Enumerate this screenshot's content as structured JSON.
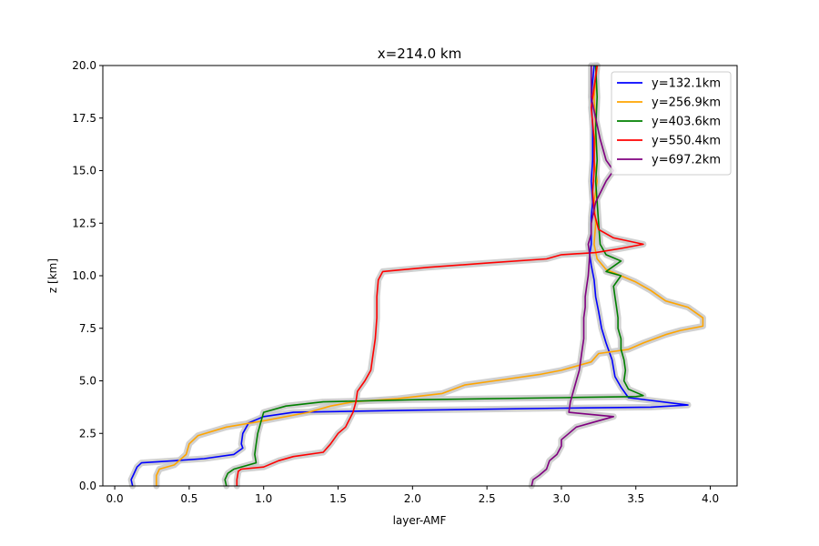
{
  "chart_data": {
    "type": "line",
    "title": "x=214.0 km",
    "xlabel": "layer-AMF",
    "ylabel": "z [km]",
    "xlim": [
      -0.08,
      4.18
    ],
    "ylim": [
      0,
      20
    ],
    "xticks": [
      "0.0",
      "0.5",
      "1.0",
      "1.5",
      "2.0",
      "2.5",
      "3.0",
      "3.5",
      "4.0"
    ],
    "yticks": [
      "0.0",
      "2.5",
      "5.0",
      "7.5",
      "10.0",
      "12.5",
      "15.0",
      "17.5",
      "20.0"
    ],
    "grid": false,
    "legend_position": "upper-right",
    "band_color": "#c8c8c8",
    "series": [
      {
        "name": "y=132.1km",
        "color": "#0000ff",
        "points": [
          [
            0.12,
            0.0
          ],
          [
            0.11,
            0.3
          ],
          [
            0.13,
            0.6
          ],
          [
            0.15,
            0.9
          ],
          [
            0.18,
            1.1
          ],
          [
            0.4,
            1.2
          ],
          [
            0.6,
            1.3
          ],
          [
            0.8,
            1.5
          ],
          [
            0.86,
            1.8
          ],
          [
            0.85,
            2.0
          ],
          [
            0.86,
            2.5
          ],
          [
            0.9,
            3.0
          ],
          [
            1.0,
            3.3
          ],
          [
            1.2,
            3.5
          ],
          [
            2.0,
            3.6
          ],
          [
            3.0,
            3.7
          ],
          [
            3.6,
            3.75
          ],
          [
            3.85,
            3.85
          ],
          [
            3.45,
            4.2
          ],
          [
            3.4,
            4.7
          ],
          [
            3.36,
            5.2
          ],
          [
            3.34,
            6.0
          ],
          [
            3.3,
            6.8
          ],
          [
            3.27,
            7.5
          ],
          [
            3.25,
            8.3
          ],
          [
            3.23,
            9.0
          ],
          [
            3.22,
            9.8
          ],
          [
            3.2,
            10.5
          ],
          [
            3.19,
            11.0
          ],
          [
            3.2,
            11.5
          ],
          [
            3.2,
            12.0
          ],
          [
            3.2,
            12.8
          ],
          [
            3.21,
            13.5
          ],
          [
            3.2,
            14.5
          ],
          [
            3.21,
            15.5
          ],
          [
            3.21,
            17.0
          ],
          [
            3.2,
            18.5
          ],
          [
            3.22,
            20.0
          ]
        ]
      },
      {
        "name": "y=256.9km",
        "color": "#ffa500",
        "points": [
          [
            0.28,
            0.0
          ],
          [
            0.28,
            0.5
          ],
          [
            0.3,
            0.8
          ],
          [
            0.4,
            1.0
          ],
          [
            0.48,
            1.5
          ],
          [
            0.5,
            2.0
          ],
          [
            0.56,
            2.4
          ],
          [
            0.75,
            2.8
          ],
          [
            1.0,
            3.1
          ],
          [
            1.3,
            3.5
          ],
          [
            1.45,
            3.8
          ],
          [
            1.6,
            4.0
          ],
          [
            1.9,
            4.15
          ],
          [
            2.2,
            4.4
          ],
          [
            2.35,
            4.8
          ],
          [
            2.55,
            5.0
          ],
          [
            2.85,
            5.3
          ],
          [
            3.0,
            5.5
          ],
          [
            3.1,
            5.7
          ],
          [
            3.2,
            5.9
          ],
          [
            3.25,
            6.3
          ],
          [
            3.45,
            6.5
          ],
          [
            3.55,
            6.8
          ],
          [
            3.7,
            7.2
          ],
          [
            3.8,
            7.4
          ],
          [
            3.95,
            7.6
          ],
          [
            3.95,
            8.0
          ],
          [
            3.85,
            8.5
          ],
          [
            3.7,
            8.8
          ],
          [
            3.6,
            9.3
          ],
          [
            3.5,
            9.7
          ],
          [
            3.4,
            10.0
          ],
          [
            3.3,
            10.3
          ],
          [
            3.24,
            10.8
          ],
          [
            3.22,
            11.5
          ],
          [
            3.23,
            12.5
          ],
          [
            3.22,
            13.5
          ],
          [
            3.24,
            14.5
          ],
          [
            3.22,
            15.5
          ],
          [
            3.23,
            17.0
          ],
          [
            3.22,
            18.5
          ],
          [
            3.24,
            20.0
          ]
        ]
      },
      {
        "name": "y=403.6km",
        "color": "#008000",
        "points": [
          [
            0.75,
            0.0
          ],
          [
            0.74,
            0.3
          ],
          [
            0.76,
            0.6
          ],
          [
            0.8,
            0.8
          ],
          [
            0.95,
            1.1
          ],
          [
            0.94,
            1.5
          ],
          [
            0.95,
            2.0
          ],
          [
            0.96,
            2.5
          ],
          [
            0.98,
            3.0
          ],
          [
            1.0,
            3.5
          ],
          [
            1.15,
            3.8
          ],
          [
            1.4,
            4.0
          ],
          [
            2.0,
            4.1
          ],
          [
            3.0,
            4.2
          ],
          [
            3.5,
            4.25
          ],
          [
            3.55,
            4.3
          ],
          [
            3.45,
            4.6
          ],
          [
            3.42,
            5.0
          ],
          [
            3.43,
            5.5
          ],
          [
            3.42,
            6.0
          ],
          [
            3.4,
            6.5
          ],
          [
            3.4,
            7.0
          ],
          [
            3.38,
            7.5
          ],
          [
            3.38,
            8.0
          ],
          [
            3.37,
            8.5
          ],
          [
            3.36,
            9.0
          ],
          [
            3.35,
            9.5
          ],
          [
            3.4,
            10.0
          ],
          [
            3.3,
            10.2
          ],
          [
            3.4,
            10.7
          ],
          [
            3.3,
            11.0
          ],
          [
            3.26,
            11.5
          ],
          [
            3.25,
            12.5
          ],
          [
            3.24,
            13.5
          ],
          [
            3.23,
            14.5
          ],
          [
            3.24,
            15.5
          ],
          [
            3.23,
            17.0
          ],
          [
            3.24,
            18.5
          ],
          [
            3.23,
            20.0
          ]
        ]
      },
      {
        "name": "y=550.4km",
        "color": "#ff0000",
        "points": [
          [
            0.82,
            0.0
          ],
          [
            0.82,
            0.3
          ],
          [
            0.83,
            0.7
          ],
          [
            0.85,
            0.8
          ],
          [
            1.0,
            0.9
          ],
          [
            1.1,
            1.2
          ],
          [
            1.2,
            1.4
          ],
          [
            1.4,
            1.6
          ],
          [
            1.45,
            2.0
          ],
          [
            1.5,
            2.5
          ],
          [
            1.55,
            2.8
          ],
          [
            1.6,
            3.5
          ],
          [
            1.62,
            4.0
          ],
          [
            1.63,
            4.5
          ],
          [
            1.68,
            5.0
          ],
          [
            1.72,
            5.5
          ],
          [
            1.73,
            6.0
          ],
          [
            1.75,
            7.0
          ],
          [
            1.76,
            8.0
          ],
          [
            1.76,
            9.0
          ],
          [
            1.77,
            9.8
          ],
          [
            1.8,
            10.2
          ],
          [
            2.1,
            10.4
          ],
          [
            2.5,
            10.6
          ],
          [
            2.9,
            10.8
          ],
          [
            3.0,
            11.0
          ],
          [
            3.23,
            11.1
          ],
          [
            3.4,
            11.3
          ],
          [
            3.55,
            11.5
          ],
          [
            3.35,
            11.8
          ],
          [
            3.25,
            12.2
          ],
          [
            3.22,
            13.0
          ],
          [
            3.21,
            14.0
          ],
          [
            3.22,
            15.0
          ],
          [
            3.22,
            16.5
          ],
          [
            3.2,
            18.0
          ],
          [
            3.24,
            20.0
          ]
        ]
      },
      {
        "name": "y=697.2km",
        "color": "#800080",
        "points": [
          [
            2.8,
            0.0
          ],
          [
            2.81,
            0.3
          ],
          [
            2.85,
            0.5
          ],
          [
            2.9,
            0.8
          ],
          [
            2.92,
            1.2
          ],
          [
            2.97,
            1.5
          ],
          [
            3.0,
            1.9
          ],
          [
            3.0,
            2.2
          ],
          [
            3.05,
            2.5
          ],
          [
            3.1,
            2.8
          ],
          [
            3.2,
            3.0
          ],
          [
            3.35,
            3.3
          ],
          [
            3.05,
            3.5
          ],
          [
            3.06,
            4.0
          ],
          [
            3.08,
            4.5
          ],
          [
            3.1,
            5.0
          ],
          [
            3.12,
            5.5
          ],
          [
            3.13,
            6.0
          ],
          [
            3.14,
            6.5
          ],
          [
            3.15,
            7.0
          ],
          [
            3.15,
            7.5
          ],
          [
            3.15,
            8.0
          ],
          [
            3.16,
            8.5
          ],
          [
            3.16,
            9.0
          ],
          [
            3.17,
            9.5
          ],
          [
            3.18,
            10.0
          ],
          [
            3.19,
            11.0
          ],
          [
            3.18,
            11.5
          ],
          [
            3.2,
            12.0
          ],
          [
            3.2,
            12.5
          ],
          [
            3.23,
            13.5
          ],
          [
            3.3,
            14.5
          ],
          [
            3.35,
            15.0
          ],
          [
            3.3,
            15.5
          ],
          [
            3.26,
            16.5
          ],
          [
            3.23,
            17.5
          ],
          [
            3.2,
            18.5
          ],
          [
            3.2,
            20.0
          ]
        ]
      }
    ]
  }
}
